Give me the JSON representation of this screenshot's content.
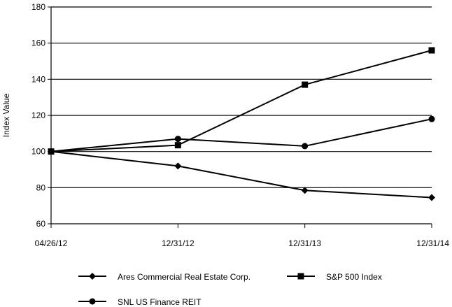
{
  "chart_data": {
    "type": "line",
    "title": "",
    "xlabel": "",
    "ylabel": "Index Value",
    "categories": [
      "04/26/12",
      "12/31/12",
      "12/31/13",
      "12/31/14"
    ],
    "ylim": [
      60,
      180
    ],
    "yticks": [
      60,
      80,
      100,
      120,
      140,
      160,
      180
    ],
    "grid": "horizontal",
    "legend_position": "bottom",
    "series": [
      {
        "name": "Ares Commercial Real Estate Corp.",
        "marker": "diamond",
        "values": [
          100,
          92,
          78.5,
          74.5
        ]
      },
      {
        "name": "S&P 500 Index",
        "marker": "square",
        "values": [
          100,
          103.5,
          137,
          156
        ]
      },
      {
        "name": "SNL US Finance REIT",
        "marker": "circle",
        "values": [
          100,
          107,
          103,
          118
        ]
      }
    ]
  }
}
